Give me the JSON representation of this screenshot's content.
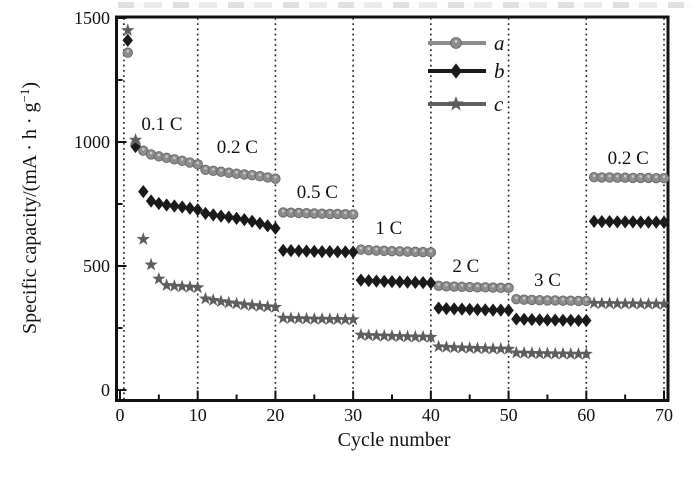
{
  "figure": {
    "background": "#ffffff",
    "axis_color": "#111111",
    "divider_color": "#222222"
  },
  "chart_data": {
    "type": "scatter",
    "title": "",
    "xlabel": "Cycle number",
    "ylabel": {
      "pre": "Specific capacity/(mA · h · g",
      "sup": "−1",
      "post": ")"
    },
    "xlim": [
      0,
      70
    ],
    "ylim": [
      0,
      1500
    ],
    "grid": "off",
    "legend_position": "top-center-inside",
    "x_ticks": [
      0,
      10,
      20,
      30,
      40,
      50,
      60,
      70
    ],
    "x_minor_ticks": [
      5,
      15,
      25,
      35,
      45,
      55,
      65
    ],
    "y_ticks": [
      0,
      500,
      1000,
      1500
    ],
    "y_minor_ticks": [
      250,
      750,
      1250
    ],
    "x_tick_labels": [
      "0",
      "10",
      "20",
      "30",
      "40",
      "50",
      "60",
      "70"
    ],
    "y_tick_labels": [
      "0",
      "500",
      "1000",
      "1500"
    ],
    "divider_lines_x": [
      0.5,
      10,
      20,
      30,
      40,
      50,
      60,
      70
    ],
    "rate_labels": [
      {
        "text": "0.1 C",
        "x": 5.4,
        "y": 1073
      },
      {
        "text": "0.2 C",
        "x": 15.1,
        "y": 980
      },
      {
        "text": "0.5 C",
        "x": 25.4,
        "y": 798
      },
      {
        "text": "1 C",
        "x": 34.6,
        "y": 653
      },
      {
        "text": "2 C",
        "x": 44.5,
        "y": 500
      },
      {
        "text": "3 C",
        "x": 55.0,
        "y": 444
      },
      {
        "text": "0.2 C",
        "x": 65.4,
        "y": 935
      }
    ],
    "legend": [
      {
        "label": "a",
        "marker": "circle",
        "color": "#8d8d8d",
        "edge": "#6b6b6b"
      },
      {
        "label": "b",
        "marker": "diamond",
        "color": "#1a1a1a",
        "edge": "#000000"
      },
      {
        "label": "c",
        "marker": "star",
        "color": "#5e5e5e",
        "edge": "#4c4c4c"
      }
    ],
    "series": [
      {
        "name": "a",
        "marker": "circle",
        "color": "#8d8d8d",
        "edge": "#6b6b6b",
        "x_start": 1,
        "values": [
          1360,
          990,
          965,
          950,
          942,
          936,
          930,
          924,
          917,
          910,
          888,
          884,
          880,
          876,
          872,
          869,
          866,
          862,
          857,
          852,
          716,
          715,
          714,
          713,
          712,
          711,
          710,
          710,
          709,
          708,
          566,
          564,
          562,
          561,
          560,
          559,
          558,
          557,
          556,
          555,
          420,
          418,
          417,
          416,
          415,
          414,
          414,
          413,
          412,
          412,
          366,
          364,
          363,
          362,
          361,
          361,
          360,
          360,
          359,
          359,
          858,
          857,
          857,
          856,
          856,
          855,
          855,
          855,
          854,
          854
        ]
      },
      {
        "name": "b",
        "marker": "diamond",
        "color": "#1a1a1a",
        "edge": "#000000",
        "x_start": 1,
        "values": [
          1410,
          982,
          800,
          762,
          752,
          746,
          742,
          738,
          733,
          727,
          712,
          706,
          701,
          697,
          692,
          687,
          680,
          672,
          662,
          652,
          563,
          562,
          561,
          560,
          559,
          558,
          558,
          557,
          557,
          556,
          443,
          441,
          439,
          438,
          437,
          436,
          435,
          434,
          433,
          432,
          330,
          328,
          327,
          326,
          325,
          324,
          323,
          322,
          322,
          321,
          286,
          285,
          284,
          283,
          282,
          282,
          281,
          281,
          280,
          280,
          680,
          679,
          679,
          678,
          678,
          678,
          677,
          677,
          677,
          676
        ]
      },
      {
        "name": "c",
        "marker": "star",
        "color": "#5e5e5e",
        "edge": "#4c4c4c",
        "x_start": 1,
        "values": [
          1450,
          1008,
          608,
          505,
          448,
          422,
          419,
          417,
          415,
          413,
          368,
          362,
          357,
          352,
          348,
          344,
          341,
          338,
          336,
          334,
          290,
          289,
          288,
          287,
          286,
          286,
          285,
          285,
          284,
          284,
          222,
          220,
          219,
          218,
          217,
          216,
          215,
          214,
          214,
          213,
          175,
          173,
          171,
          170,
          169,
          168,
          167,
          166,
          166,
          165,
          150,
          149,
          148,
          147,
          147,
          146,
          146,
          145,
          145,
          145,
          350,
          349,
          349,
          348,
          348,
          348,
          347,
          347,
          347,
          346
        ]
      }
    ]
  }
}
